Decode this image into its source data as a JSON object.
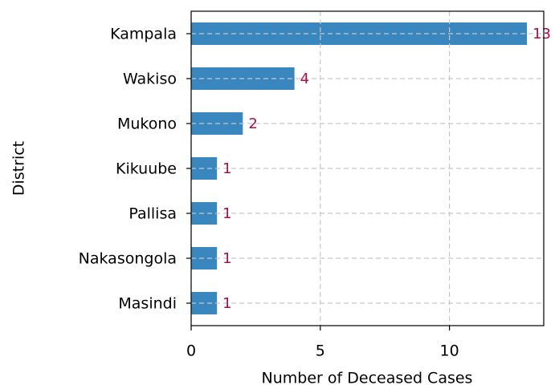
{
  "chart_data": {
    "type": "barh",
    "categories": [
      "Kampala",
      "Wakiso",
      "Mukono",
      "Kikuube",
      "Pallisa",
      "Nakasongola",
      "Masindi"
    ],
    "values": [
      13,
      4,
      2,
      1,
      1,
      1,
      1
    ],
    "color": "#3a87c0",
    "xlabel": "Number of Deceased Cases",
    "ylabel": "District",
    "xlim": [
      0,
      13.65
    ],
    "xticks": [
      0,
      5,
      10
    ],
    "grid": true
  }
}
